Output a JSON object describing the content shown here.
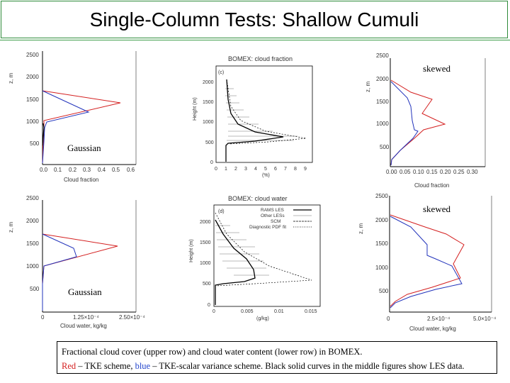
{
  "slide": {
    "title": "Single-Column Tests: Shallow Cumuli"
  },
  "labels": {
    "gaussian": "Gaussian",
    "skewed": "skewed"
  },
  "panels": {
    "tl": {
      "ylabel": "z, m",
      "yticks": [
        "2500",
        "2000",
        "1500",
        "1000",
        "500"
      ],
      "xticks": [
        "0.0",
        "0.1",
        "0.2",
        "0.3",
        "0.4",
        "0.5",
        "0.6"
      ],
      "xlabel": "Cloud fraction"
    },
    "tm": {
      "title": "BOMEX: cloud fraction",
      "tag": "(c)",
      "ylabel": "Height (m)",
      "yticks": [
        "2000",
        "1500",
        "1000",
        "500",
        "0"
      ],
      "xticks": [
        "0",
        "1",
        "2",
        "3",
        "4",
        "5",
        "6",
        "7",
        "8",
        "9"
      ],
      "xlabel": "(%)"
    },
    "tr": {
      "ylabel": "z, m",
      "yticks": [
        "2500",
        "2000",
        "1500",
        "1000",
        "500"
      ],
      "xticks": [
        "0.00",
        "0.05",
        "0.10",
        "0.15",
        "0.20",
        "0.25",
        "0.30"
      ],
      "xlabel": "Cloud fraction"
    },
    "bl": {
      "ylabel": "z, m",
      "yticks": [
        "2500",
        "2000",
        "1500",
        "1000",
        "500"
      ],
      "xticks": [
        "0",
        "1.25×10⁻⁴",
        "2.50×10⁻⁴"
      ],
      "xlabel": "Cloud water, kg/kg"
    },
    "bm": {
      "title": "BOMEX: cloud water",
      "tag": "(d)",
      "ylabel": "Height (m)",
      "yticks": [
        "2000",
        "1500",
        "1000",
        "500",
        "0"
      ],
      "xticks": [
        "0",
        "0.005",
        "0.01",
        "0.015"
      ],
      "xlabel": "(g/kg)",
      "legend": [
        "RAMS LES",
        "Other LESs",
        "SCM",
        "Diagnostic PDF fit"
      ]
    },
    "br": {
      "ylabel": "z, m",
      "yticks": [
        "2500",
        "2000",
        "1500",
        "1000",
        "500"
      ],
      "xticks": [
        "0",
        "2.5×10⁻⁴",
        "5.0×10⁻⁴"
      ],
      "xlabel": "Cloud water, kg/kg"
    }
  },
  "caption": {
    "line1": "Fractional cloud cover (upper row) and cloud water content (lower row) in BOMEX.",
    "red_word": "Red",
    "red_rest": " – TKE scheme, ",
    "blue_word": "blue",
    "blue_rest": " – TKE-scalar variance scheme. Black solid curves in the middle figures show LES data."
  },
  "colors": {
    "red": "#d42020",
    "blue": "#2233bb",
    "frame": "#2e8b3a"
  }
}
